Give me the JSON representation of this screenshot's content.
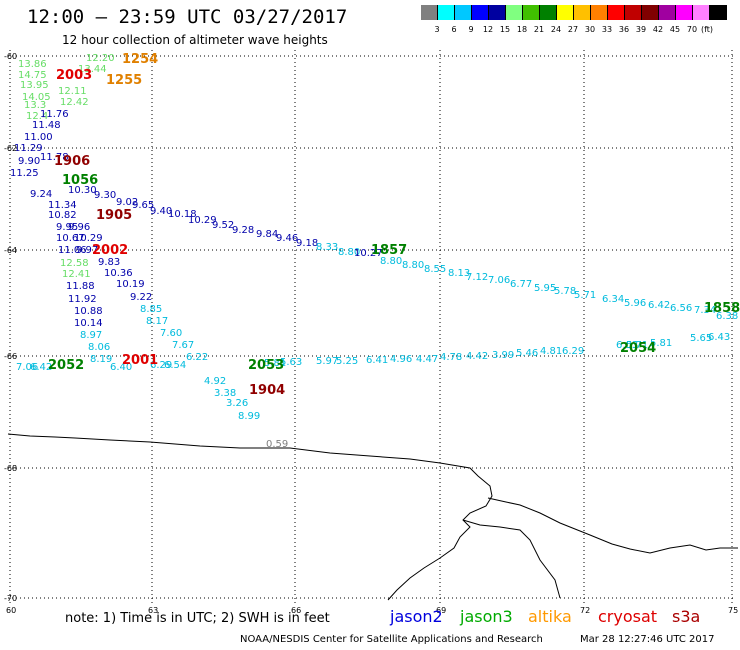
{
  "title": "12:00 – 23:59 UTC 03/27/2017",
  "subtitle": "12 hour collection of altimeter wave heights",
  "legend": {
    "colors": [
      "#808080",
      "#00ffff",
      "#00c8ff",
      "#0000ff",
      "#0000a0",
      "#80ff80",
      "#40c000",
      "#008000",
      "#ffff00",
      "#ffc000",
      "#ff8000",
      "#ff0000",
      "#c00000",
      "#800000",
      "#a000a0",
      "#ff00ff",
      "#ff80ff",
      "#000000"
    ],
    "labels": [
      "3",
      "6",
      "9",
      "12",
      "15",
      "18",
      "21",
      "24",
      "27",
      "30",
      "33",
      "36",
      "39",
      "42",
      "45",
      "70"
    ],
    "unit": "(ft)"
  },
  "axes": {
    "lat_labels": [
      "-60",
      "-62",
      "-64",
      "-66",
      "-68",
      "-70"
    ],
    "lon_labels": [
      "60",
      "63",
      "66",
      "69",
      "72",
      "75"
    ]
  },
  "map_palette": {
    "grid": "#000000",
    "coast": "#000000",
    "ice_text": "#808080"
  },
  "ice_label": "0.59",
  "passes": [
    {
      "id": "1254",
      "color": "#e08000"
    },
    {
      "id": "2003",
      "color": "#e00000"
    },
    {
      "id": "1255",
      "color": "#e08000"
    },
    {
      "id": "1906",
      "color": "#900000"
    },
    {
      "id": "1056",
      "color": "#008000"
    },
    {
      "id": "1905",
      "color": "#900000"
    },
    {
      "id": "2002",
      "color": "#e00000"
    },
    {
      "id": "1857",
      "color": "#008000"
    },
    {
      "id": "1858",
      "color": "#008000"
    },
    {
      "id": "2054",
      "color": "#008000"
    },
    {
      "id": "2052",
      "color": "#008000"
    },
    {
      "id": "2001",
      "color": "#e00000"
    },
    {
      "id": "2053",
      "color": "#008000"
    },
    {
      "id": "1904",
      "color": "#900000"
    }
  ],
  "observations": [
    {
      "v": "12.20",
      "c": "#66dd66"
    },
    {
      "v": "13.86",
      "c": "#66dd66"
    },
    {
      "v": "13.44",
      "c": "#66dd66"
    },
    {
      "v": "14.75",
      "c": "#66dd66"
    },
    {
      "v": "13.95",
      "c": "#66dd66"
    },
    {
      "v": "14.05",
      "c": "#66dd66"
    },
    {
      "v": "12.11",
      "c": "#66dd66"
    },
    {
      "v": "12.42",
      "c": "#66dd66"
    },
    {
      "v": "13.3",
      "c": "#66dd66"
    },
    {
      "v": "12.4",
      "c": "#66dd66"
    },
    {
      "v": "11.76",
      "c": "#0000aa"
    },
    {
      "v": "11.48",
      "c": "#0000aa"
    },
    {
      "v": "11.00",
      "c": "#0000aa"
    },
    {
      "v": "11.29",
      "c": "#0000aa"
    },
    {
      "v": "9.90",
      "c": "#0000aa"
    },
    {
      "v": "11.78",
      "c": "#0000aa"
    },
    {
      "v": "11.25",
      "c": "#0000aa"
    },
    {
      "v": "10.30",
      "c": "#0000aa"
    },
    {
      "v": "9.30",
      "c": "#0000aa"
    },
    {
      "v": "9.02",
      "c": "#0000aa"
    },
    {
      "v": "9.65",
      "c": "#0000aa"
    },
    {
      "v": "9.40",
      "c": "#0000aa"
    },
    {
      "v": "10.18",
      "c": "#0000aa"
    },
    {
      "v": "10.29",
      "c": "#0000aa"
    },
    {
      "v": "9.52",
      "c": "#0000aa"
    },
    {
      "v": "9.28",
      "c": "#0000aa"
    },
    {
      "v": "9.84",
      "c": "#0000aa"
    },
    {
      "v": "9.46",
      "c": "#0000aa"
    },
    {
      "v": "9.18",
      "c": "#0000aa"
    },
    {
      "v": "9.24",
      "c": "#0000aa"
    },
    {
      "v": "11.34",
      "c": "#0000aa"
    },
    {
      "v": "10.82",
      "c": "#0000aa"
    },
    {
      "v": "9.96",
      "c": "#0000aa"
    },
    {
      "v": "9.95",
      "c": "#0000aa"
    },
    {
      "v": "10.29",
      "c": "#0000aa"
    },
    {
      "v": "10.67",
      "c": "#0000aa"
    },
    {
      "v": "11.06",
      "c": "#0000aa"
    },
    {
      "v": "9.97",
      "c": "#0000aa"
    },
    {
      "v": "12.58",
      "c": "#66dd66"
    },
    {
      "v": "9.83",
      "c": "#0000aa"
    },
    {
      "v": "12.41",
      "c": "#66dd66"
    },
    {
      "v": "10.36",
      "c": "#0000aa"
    },
    {
      "v": "11.88",
      "c": "#0000aa"
    },
    {
      "v": "10.19",
      "c": "#0000aa"
    },
    {
      "v": "11.92",
      "c": "#0000aa"
    },
    {
      "v": "9.22",
      "c": "#0000aa"
    },
    {
      "v": "10.88",
      "c": "#0000aa"
    },
    {
      "v": "8.85",
      "c": "#00bbdd"
    },
    {
      "v": "10.14",
      "c": "#0000aa"
    },
    {
      "v": "8.17",
      "c": "#00bbdd"
    },
    {
      "v": "8.97",
      "c": "#00bbdd"
    },
    {
      "v": "7.60",
      "c": "#00bbdd"
    },
    {
      "v": "8.06",
      "c": "#00bbdd"
    },
    {
      "v": "7.67",
      "c": "#00bbdd"
    },
    {
      "v": "8.19",
      "c": "#00bbdd"
    },
    {
      "v": "6.22",
      "c": "#00bbdd"
    },
    {
      "v": "4.92",
      "c": "#00bbdd"
    },
    {
      "v": "3.38",
      "c": "#00bbdd"
    },
    {
      "v": "3.26",
      "c": "#00bbdd"
    },
    {
      "v": "8.99",
      "c": "#00bbdd"
    },
    {
      "v": "8.33",
      "c": "#00bbdd"
    },
    {
      "v": "8.80",
      "c": "#00bbdd"
    },
    {
      "v": "10.27",
      "c": "#0000aa"
    },
    {
      "v": "8.80",
      "c": "#00bbdd"
    },
    {
      "v": "8.80",
      "c": "#00bbdd"
    },
    {
      "v": "8.55",
      "c": "#00bbdd"
    },
    {
      "v": "8.13",
      "c": "#00bbdd"
    },
    {
      "v": "7.12",
      "c": "#00bbdd"
    },
    {
      "v": "7.06",
      "c": "#00bbdd"
    },
    {
      "v": "6.77",
      "c": "#00bbdd"
    },
    {
      "v": "5.95",
      "c": "#00bbdd"
    },
    {
      "v": "5.78",
      "c": "#00bbdd"
    },
    {
      "v": "5.71",
      "c": "#00bbdd"
    },
    {
      "v": "6.34",
      "c": "#00bbdd"
    },
    {
      "v": "5.96",
      "c": "#00bbdd"
    },
    {
      "v": "6.42",
      "c": "#00bbdd"
    },
    {
      "v": "6.56",
      "c": "#00bbdd"
    },
    {
      "v": "7.34",
      "c": "#00bbdd"
    },
    {
      "v": "6.38",
      "c": "#00bbdd"
    },
    {
      "v": "6.03",
      "c": "#00bbdd"
    },
    {
      "v": "5.81",
      "c": "#00bbdd"
    },
    {
      "v": "5.65",
      "c": "#00bbdd"
    },
    {
      "v": "6.43",
      "c": "#00bbdd"
    },
    {
      "v": "5.71",
      "c": "#00bbdd"
    },
    {
      "v": "6.29",
      "c": "#00bbdd"
    },
    {
      "v": "4.81",
      "c": "#00bbdd"
    },
    {
      "v": "5.46",
      "c": "#00bbdd"
    },
    {
      "v": "3.99",
      "c": "#00bbdd"
    },
    {
      "v": "4.42",
      "c": "#00bbdd"
    },
    {
      "v": "4.78",
      "c": "#00bbdd"
    },
    {
      "v": "4.47",
      "c": "#00bbdd"
    },
    {
      "v": "4.96",
      "c": "#00bbdd"
    },
    {
      "v": "6.41",
      "c": "#00bbdd"
    },
    {
      "v": "5.25",
      "c": "#00bbdd"
    },
    {
      "v": "5.97",
      "c": "#00bbdd"
    },
    {
      "v": "5.63",
      "c": "#00bbdd"
    },
    {
      "v": "5.81",
      "c": "#00bbdd"
    },
    {
      "v": "6.54",
      "c": "#00bbdd"
    },
    {
      "v": "6.29",
      "c": "#00bbdd"
    },
    {
      "v": "6.40",
      "c": "#00bbdd"
    },
    {
      "v": "6.42",
      "c": "#00bbdd"
    },
    {
      "v": "7.06",
      "c": "#00bbdd"
    },
    {
      "v": "7.67",
      "c": "#00bbdd"
    }
  ],
  "footer": {
    "note": "note: 1) Time is in UTC; 2) SWH is in feet",
    "satellites": [
      {
        "name": "jason2",
        "color": "#0000dd"
      },
      {
        "name": "jason3",
        "color": "#00aa00"
      },
      {
        "name": "altika",
        "color": "#ff9900"
      },
      {
        "name": "cryosat",
        "color": "#dd0000"
      },
      {
        "name": "s3a",
        "color": "#aa0000"
      }
    ],
    "credit": "NOAA/NESDIS Center for Satellite Applications and Research",
    "timestamp": "Mar 28 12:27:46 UTC 2017"
  }
}
